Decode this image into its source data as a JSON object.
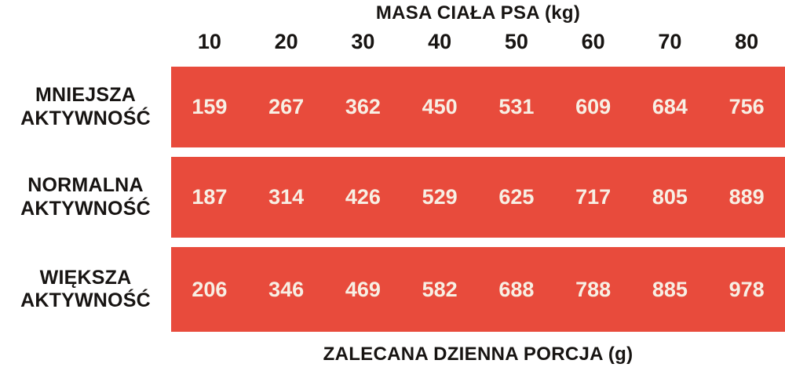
{
  "title": "MASA CIAŁA PSA (kg)",
  "footer": "ZALECANA DZIENNA PORCJA (g)",
  "columns": [
    "10",
    "20",
    "30",
    "40",
    "50",
    "60",
    "70",
    "80"
  ],
  "rows": [
    {
      "label_line1": "MNIEJSZA",
      "label_line2": "AKTYWNOŚĆ",
      "values": [
        159,
        267,
        362,
        450,
        531,
        609,
        684,
        756
      ]
    },
    {
      "label_line1": "NORMALNA",
      "label_line2": "AKTYWNOŚĆ",
      "values": [
        187,
        314,
        426,
        529,
        625,
        717,
        805,
        889
      ]
    },
    {
      "label_line1": "WIĘKSZA",
      "label_line2": "AKTYWNOŚĆ",
      "values": [
        206,
        346,
        469,
        582,
        688,
        788,
        885,
        978
      ]
    }
  ],
  "colors": {
    "bar": "#E84B3C",
    "value_text": "#F7EFE4",
    "label_text": "#171412",
    "background": "#FFFFFF"
  },
  "chart_data": {
    "type": "table",
    "title": "MASA CIAŁA PSA (kg)",
    "xlabel": "ZALECANA DZIENNA PORCJA (g)",
    "categories": [
      "10",
      "20",
      "30",
      "40",
      "50",
      "60",
      "70",
      "80"
    ],
    "series": [
      {
        "name": "MNIEJSZA AKTYWNOŚĆ",
        "values": [
          159,
          267,
          362,
          450,
          531,
          609,
          684,
          756
        ]
      },
      {
        "name": "NORMALNA AKTYWNOŚĆ",
        "values": [
          187,
          314,
          426,
          529,
          625,
          717,
          805,
          889
        ]
      },
      {
        "name": "WIĘKSZA AKTYWNOŚĆ",
        "values": [
          206,
          346,
          469,
          582,
          688,
          788,
          885,
          978
        ]
      }
    ],
    "legend_position": "left",
    "grid": false
  }
}
